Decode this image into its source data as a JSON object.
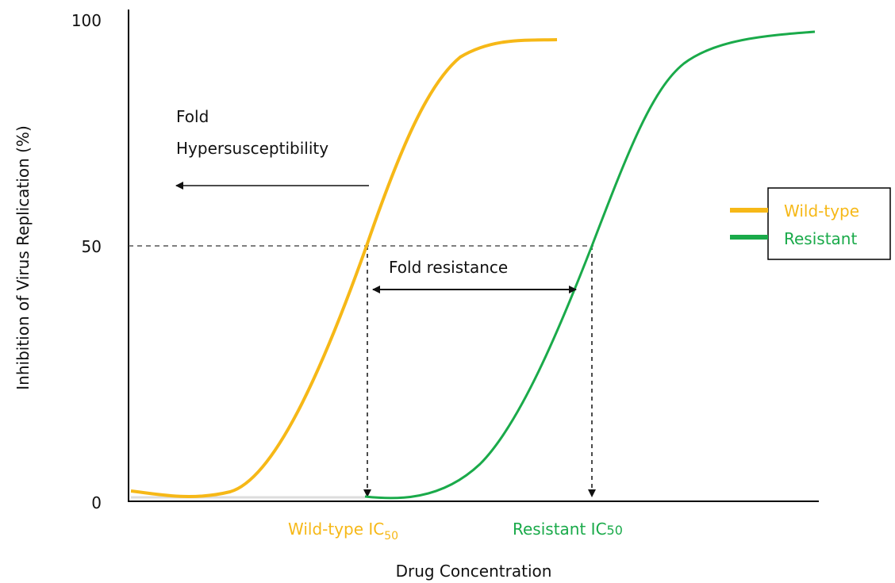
{
  "y_axis": {
    "label": "Inhibition of Virus Replication (%)",
    "ticks": [
      "100",
      "50",
      "0"
    ]
  },
  "x_axis": {
    "label": "Drug Concentration",
    "markers": [
      {
        "label": "Wild-type IC",
        "sub": "50"
      },
      {
        "label": "Resistant IC",
        "sub": "50"
      }
    ]
  },
  "annotations": {
    "hyper": [
      "Fold",
      "Hypersusceptibility"
    ],
    "resistance": "Fold resistance"
  },
  "legend": [
    "Wild-type",
    "Resistant"
  ]
}
